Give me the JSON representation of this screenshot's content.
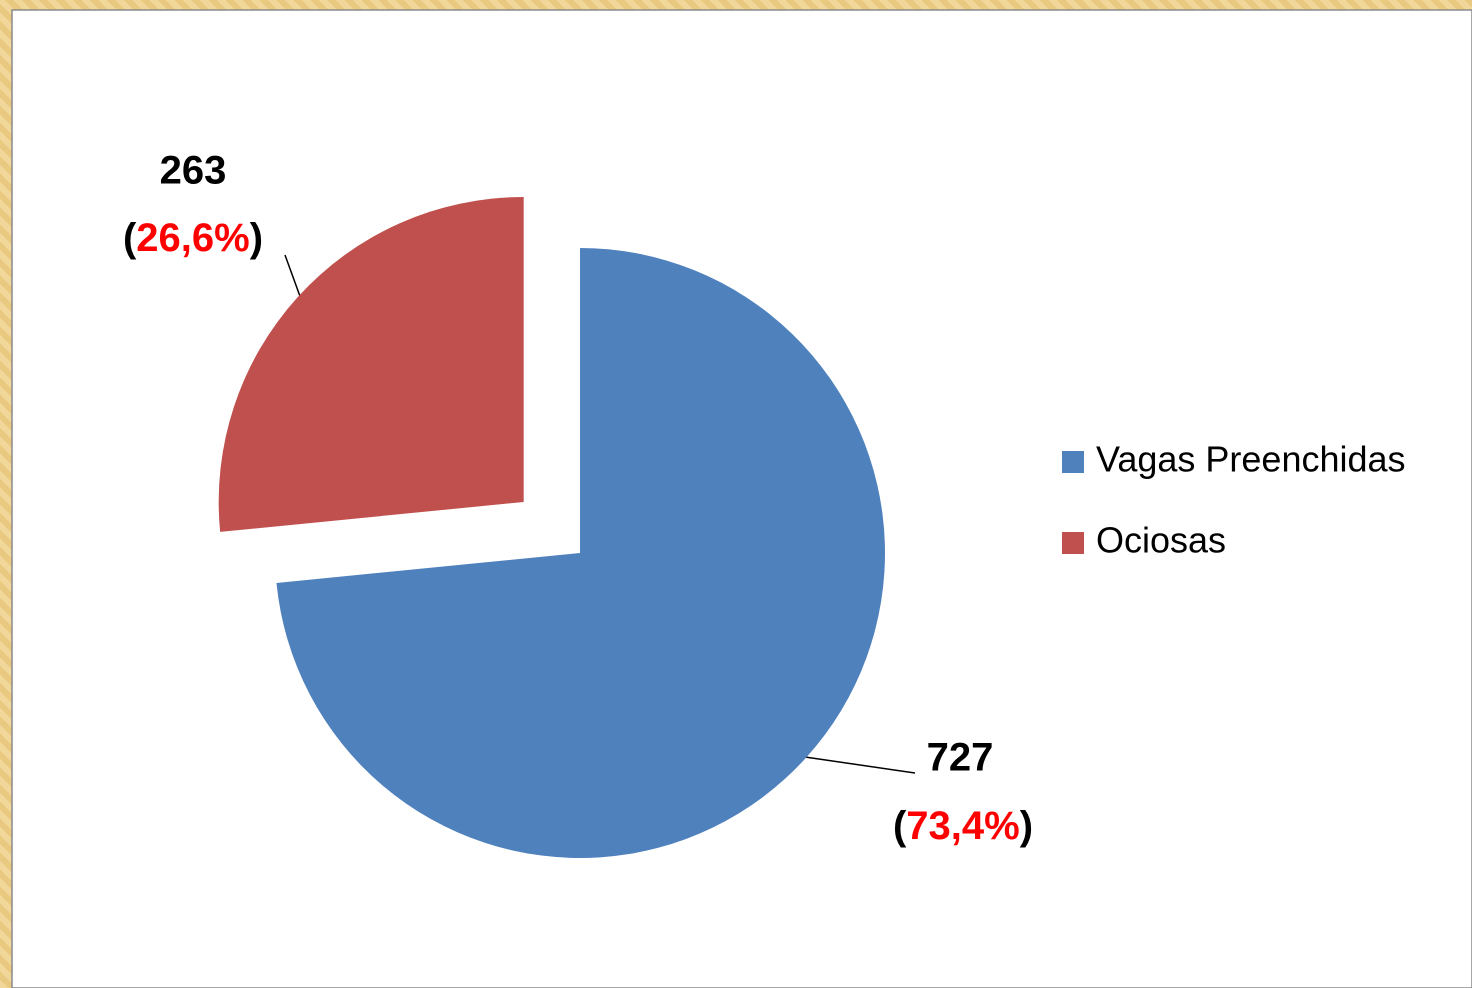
{
  "chart_data": {
    "type": "pie",
    "categories": [
      "Vagas Preenchidas",
      "Ociosas"
    ],
    "values": [
      727,
      263
    ],
    "percent_labels": [
      "(73,4%)",
      "(26,6%)"
    ],
    "series_colors": [
      "#4f81bd",
      "#c0504d"
    ],
    "exploded": [
      false,
      true
    ],
    "legend": "right"
  }
}
